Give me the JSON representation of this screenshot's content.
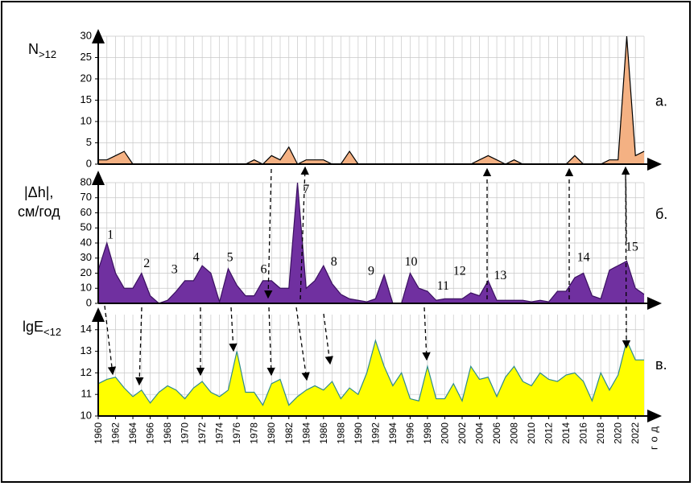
{
  "chart_data": [
    {
      "type": "area",
      "panel_label": "а.",
      "ylabel": "N",
      "ylabel_sub": ">12",
      "color": "#f4b183",
      "stroke": "#000000",
      "x": [
        1960,
        1961,
        1962,
        1963,
        1964,
        1965,
        1966,
        1967,
        1968,
        1969,
        1970,
        1971,
        1972,
        1973,
        1974,
        1975,
        1976,
        1977,
        1978,
        1979,
        1980,
        1981,
        1982,
        1983,
        1984,
        1985,
        1986,
        1987,
        1988,
        1989,
        1990,
        1991,
        1992,
        1993,
        1994,
        1995,
        1996,
        1997,
        1998,
        1999,
        2000,
        2001,
        2002,
        2003,
        2004,
        2005,
        2006,
        2007,
        2008,
        2009,
        2010,
        2011,
        2012,
        2013,
        2014,
        2015,
        2016,
        2017,
        2018,
        2019,
        2020,
        2021,
        2022,
        2023
      ],
      "values": [
        1,
        1,
        2,
        3,
        0,
        0,
        0,
        0,
        0,
        0,
        0,
        0,
        0,
        0,
        0,
        0,
        0,
        0,
        1,
        0,
        2,
        1,
        4,
        0,
        1,
        1,
        1,
        0,
        0,
        3,
        0,
        0,
        0,
        0,
        0,
        0,
        0,
        0,
        0,
        0,
        0,
        0,
        0,
        0,
        1,
        2,
        1,
        0,
        1,
        0,
        0,
        0,
        0,
        0,
        0,
        2,
        0,
        0,
        0,
        1,
        1,
        30,
        2,
        3
      ],
      "xlim": [
        1960,
        2023
      ],
      "ylim": [
        0,
        30
      ],
      "yticks": [
        0,
        5,
        10,
        15,
        20,
        25,
        30
      ],
      "grid": true
    },
    {
      "type": "area",
      "panel_label": "б.",
      "ylabel": "|Δh|,",
      "ylabel2": "см/год",
      "color": "#7030a0",
      "stroke": "#3a1060",
      "x": [
        1960,
        1961,
        1962,
        1963,
        1964,
        1965,
        1966,
        1967,
        1968,
        1969,
        1970,
        1971,
        1972,
        1973,
        1974,
        1975,
        1976,
        1977,
        1978,
        1979,
        1980,
        1981,
        1982,
        1983,
        1984,
        1985,
        1986,
        1987,
        1988,
        1989,
        1990,
        1991,
        1992,
        1993,
        1994,
        1995,
        1996,
        1997,
        1998,
        1999,
        2000,
        2001,
        2002,
        2003,
        2004,
        2005,
        2006,
        2007,
        2008,
        2009,
        2010,
        2011,
        2012,
        2013,
        2014,
        2015,
        2016,
        2017,
        2018,
        2019,
        2020,
        2021,
        2022,
        2023
      ],
      "values": [
        22,
        40,
        20,
        10,
        10,
        20,
        5,
        0,
        2,
        8,
        15,
        15,
        25,
        20,
        1,
        23,
        12,
        5,
        5,
        15,
        15,
        10,
        10,
        80,
        10,
        15,
        25,
        13,
        6,
        3,
        2,
        1,
        3,
        19,
        0,
        0,
        20,
        10,
        8,
        2,
        3,
        3,
        3,
        7,
        5,
        15,
        2,
        2,
        2,
        2,
        1,
        2,
        1,
        8,
        8,
        17,
        20,
        5,
        3,
        22,
        25,
        28,
        10,
        6
      ],
      "xlim": [
        1960,
        2023
      ],
      "ylim": [
        0,
        80
      ],
      "yticks": [
        0,
        10,
        20,
        30,
        40,
        50,
        60,
        70,
        80
      ],
      "grid": true,
      "annotations": [
        {
          "text": "1",
          "x": 1961.4,
          "y": 45
        },
        {
          "text": "2",
          "x": 1965.6,
          "y": 26
        },
        {
          "text": "3",
          "x": 1968.8,
          "y": 22
        },
        {
          "text": "4",
          "x": 1971.3,
          "y": 30
        },
        {
          "text": "5",
          "x": 1975.2,
          "y": 30
        },
        {
          "text": "6",
          "x": 1979.1,
          "y": 22
        },
        {
          "text": "7",
          "x": 1984,
          "y": 75
        },
        {
          "text": "8",
          "x": 1987.2,
          "y": 27
        },
        {
          "text": "9",
          "x": 1991.5,
          "y": 21
        },
        {
          "text": "10",
          "x": 1996.1,
          "y": 27
        },
        {
          "text": "11",
          "x": 1999.8,
          "y": 11
        },
        {
          "text": "12",
          "x": 2001.7,
          "y": 21
        },
        {
          "text": "13",
          "x": 2006.4,
          "y": 18
        },
        {
          "text": "14",
          "x": 2016,
          "y": 30
        },
        {
          "text": "15",
          "x": 2021.6,
          "y": 37
        }
      ]
    },
    {
      "type": "area",
      "panel_label": "в.",
      "ylabel": "lgE",
      "ylabel_sub": "<12",
      "color": "#ffff00",
      "stroke": "#2e8b8b",
      "x": [
        1960,
        1961,
        1962,
        1963,
        1964,
        1965,
        1966,
        1967,
        1968,
        1969,
        1970,
        1971,
        1972,
        1973,
        1974,
        1975,
        1976,
        1977,
        1978,
        1979,
        1980,
        1981,
        1982,
        1983,
        1984,
        1985,
        1986,
        1987,
        1988,
        1989,
        1990,
        1991,
        1992,
        1993,
        1994,
        1995,
        1996,
        1997,
        1998,
        1999,
        2000,
        2001,
        2002,
        2003,
        2004,
        2005,
        2006,
        2007,
        2008,
        2009,
        2010,
        2011,
        2012,
        2013,
        2014,
        2015,
        2016,
        2017,
        2018,
        2019,
        2020,
        2021,
        2022,
        2023
      ],
      "values": [
        11.5,
        11.7,
        11.8,
        11.3,
        10.9,
        11.2,
        10.6,
        11.1,
        11.4,
        11.2,
        10.8,
        11.3,
        11.6,
        11.1,
        10.9,
        11.2,
        13,
        11.1,
        11.1,
        10.5,
        11.5,
        11.7,
        10.5,
        10.9,
        11.2,
        11.4,
        11.2,
        11.6,
        10.8,
        11.3,
        11.0,
        12,
        13.5,
        12.3,
        11.4,
        12,
        10.8,
        10.7,
        12.3,
        10.8,
        10.8,
        11.5,
        10.7,
        12.3,
        11.7,
        11.8,
        10.9,
        11.8,
        12.3,
        11.6,
        11.4,
        12,
        11.7,
        11.6,
        11.9,
        12.0,
        11.6,
        10.7,
        12,
        11.2,
        11.9,
        13.5,
        12.6,
        12.6
      ],
      "xlim": [
        1960,
        2023
      ],
      "ylim": [
        10,
        14.7
      ],
      "yticks": [
        10,
        11,
        12,
        13,
        14
      ],
      "grid": true,
      "xticks": [
        1960,
        1962,
        1964,
        1966,
        1968,
        1970,
        1972,
        1974,
        1976,
        1978,
        1980,
        1982,
        1984,
        1986,
        1988,
        1990,
        1992,
        1994,
        1996,
        1998,
        2000,
        2002,
        2004,
        2006,
        2008,
        2010,
        2012,
        2014,
        2016,
        2018,
        2020,
        2022
      ],
      "xlabel": "год"
    }
  ]
}
